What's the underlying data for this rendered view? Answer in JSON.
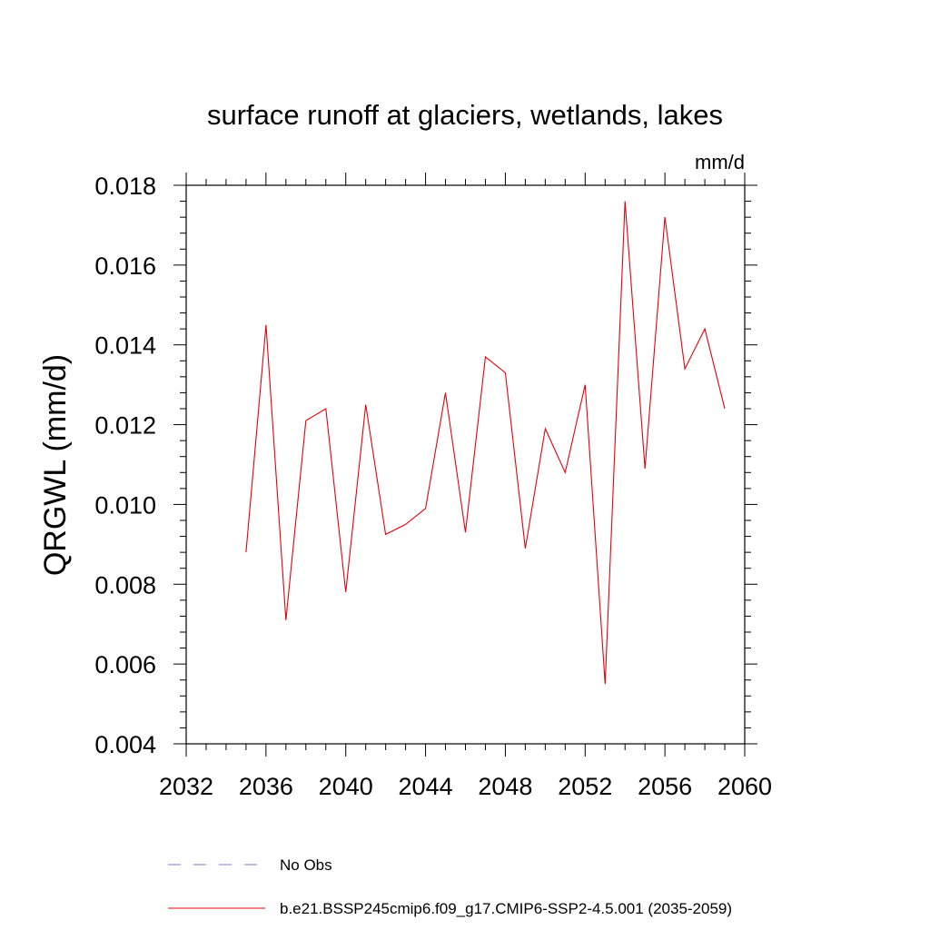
{
  "chart_data": {
    "type": "line",
    "title": "surface runoff at glaciers, wetlands, lakes",
    "units_label": "mm/d",
    "ylabel": "QRGWL  (mm/d)",
    "xlabel": "",
    "xlim": [
      2032,
      2060
    ],
    "ylim": [
      0.004,
      0.018
    ],
    "x_ticks": [
      "2032",
      "2036",
      "2040",
      "2044",
      "2048",
      "2052",
      "2056",
      "2060"
    ],
    "y_ticks": [
      "0.004",
      "0.006",
      "0.008",
      "0.010",
      "0.012",
      "0.014",
      "0.016",
      "0.018"
    ],
    "grid": false,
    "legend_position": "bottom",
    "legend": [
      {
        "label": "No Obs",
        "color": "#7b7bd6",
        "style": "dashed"
      },
      {
        "label": "b.e21.BSSP245cmip6.f09_g17.CMIP6-SSP2-4.5.001 (2035-2059)",
        "color": "#e8000b",
        "style": "solid"
      }
    ],
    "series": [
      {
        "name": "b.e21.BSSP245cmip6.f09_g17.CMIP6-SSP2-4.5.001 (2035-2059)",
        "color": "#e8000b",
        "x": [
          2035,
          2036,
          2037,
          2038,
          2039,
          2040,
          2041,
          2042,
          2043,
          2044,
          2045,
          2046,
          2047,
          2048,
          2049,
          2050,
          2051,
          2052,
          2053,
          2054,
          2055,
          2056,
          2057,
          2058,
          2059
        ],
        "values": [
          0.0088,
          0.0145,
          0.0071,
          0.0121,
          0.0124,
          0.0078,
          0.0125,
          0.00925,
          0.0095,
          0.0099,
          0.0128,
          0.0093,
          0.0137,
          0.0133,
          0.0089,
          0.0119,
          0.0108,
          0.013,
          0.0055,
          0.0176,
          0.0109,
          0.0172,
          0.0134,
          0.0144,
          0.0124
        ]
      }
    ]
  }
}
